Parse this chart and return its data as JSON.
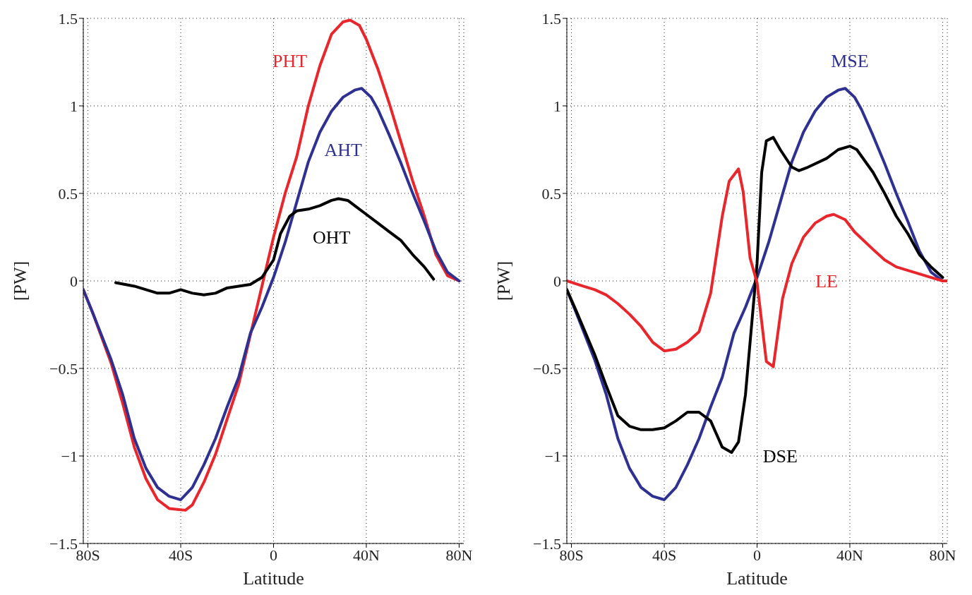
{
  "chart_data": [
    {
      "type": "line",
      "xlabel": "Latitude",
      "ylabel": "[PW]",
      "xlim": [
        -82,
        82
      ],
      "ylim": [
        -1.5,
        1.5
      ],
      "xticks": [
        {
          "value": -80,
          "label": "80S"
        },
        {
          "value": -40,
          "label": "40S"
        },
        0,
        {
          "value": 40,
          "label": "40N"
        },
        {
          "value": 80,
          "label": "80N"
        }
      ],
      "yticks": [
        -1.5,
        -1,
        -0.5,
        0,
        0.5,
        1,
        1.5
      ],
      "grid": true,
      "marker": "none",
      "line_style": "solid",
      "series": [
        {
          "color": "#e8262b",
          "x": [
            -82,
            -78,
            -70,
            -65,
            -60,
            -55,
            -50,
            -45,
            -38,
            -35,
            -30,
            -25,
            -20,
            -15,
            -10,
            -5,
            0,
            5,
            10,
            15,
            20,
            25,
            30,
            33,
            37,
            40,
            45,
            50,
            55,
            60,
            65,
            70,
            75,
            80
          ],
          "values": [
            -0.05,
            -0.18,
            -0.47,
            -0.7,
            -0.95,
            -1.13,
            -1.25,
            -1.3,
            -1.31,
            -1.28,
            -1.15,
            -0.99,
            -0.79,
            -0.59,
            -0.31,
            -0.03,
            0.25,
            0.5,
            0.71,
            1.0,
            1.23,
            1.41,
            1.48,
            1.49,
            1.46,
            1.38,
            1.21,
            1.01,
            0.79,
            0.57,
            0.37,
            0.15,
            0.03,
            0.0
          ]
        },
        {
          "color": "#2e3192",
          "x": [
            -82,
            -78,
            -70,
            -65,
            -60,
            -55,
            -50,
            -45,
            -40,
            -35,
            -30,
            -25,
            -20,
            -15,
            -10,
            -5,
            0,
            5,
            10,
            15,
            20,
            25,
            30,
            35,
            38,
            42,
            45,
            50,
            55,
            60,
            65,
            70,
            75,
            80
          ],
          "values": [
            -0.05,
            -0.18,
            -0.45,
            -0.65,
            -0.9,
            -1.07,
            -1.18,
            -1.23,
            -1.25,
            -1.18,
            -1.05,
            -0.9,
            -0.72,
            -0.55,
            -0.3,
            -0.15,
            0.02,
            0.22,
            0.45,
            0.68,
            0.85,
            0.97,
            1.05,
            1.09,
            1.1,
            1.05,
            0.98,
            0.83,
            0.67,
            0.5,
            0.34,
            0.17,
            0.05,
            0.0
          ]
        },
        {
          "color": "#000000",
          "x": [
            -68,
            -60,
            -55,
            -50,
            -45,
            -40,
            -35,
            -30,
            -25,
            -20,
            -15,
            -10,
            -5,
            0,
            3,
            7,
            10,
            15,
            20,
            25,
            28,
            32,
            35,
            40,
            45,
            50,
            55,
            60,
            65,
            69
          ],
          "values": [
            -0.01,
            -0.03,
            -0.05,
            -0.07,
            -0.07,
            -0.05,
            -0.07,
            -0.08,
            -0.07,
            -0.04,
            -0.03,
            -0.02,
            0.02,
            0.12,
            0.27,
            0.37,
            0.4,
            0.41,
            0.43,
            0.46,
            0.47,
            0.46,
            0.43,
            0.38,
            0.33,
            0.28,
            0.23,
            0.15,
            0.08,
            0.01
          ]
        }
      ],
      "annotations": [
        "PHT",
        "AHT",
        "OHT"
      ]
    },
    {
      "type": "line",
      "xlabel": "Latitude",
      "ylabel": "[PW]",
      "xlim": [
        -82,
        82
      ],
      "ylim": [
        -1.5,
        1.5
      ],
      "xticks": [
        {
          "value": -80,
          "label": "80S"
        },
        {
          "value": -40,
          "label": "40S"
        },
        0,
        {
          "value": 40,
          "label": "40N"
        },
        {
          "value": 80,
          "label": "80N"
        }
      ],
      "yticks": [
        -1.5,
        -1,
        -0.5,
        0,
        0.5,
        1,
        1.5
      ],
      "grid": true,
      "marker": "none",
      "line_style": "solid",
      "series": [
        {
          "color": "#2e3192",
          "x": [
            -82,
            -78,
            -70,
            -65,
            -60,
            -55,
            -50,
            -45,
            -40,
            -35,
            -30,
            -25,
            -20,
            -15,
            -10,
            -5,
            0,
            5,
            10,
            15,
            20,
            25,
            30,
            35,
            38,
            42,
            45,
            50,
            55,
            60,
            65,
            70,
            75,
            80
          ],
          "values": [
            -0.05,
            -0.18,
            -0.45,
            -0.65,
            -0.9,
            -1.07,
            -1.18,
            -1.23,
            -1.25,
            -1.18,
            -1.05,
            -0.9,
            -0.72,
            -0.55,
            -0.3,
            -0.15,
            0.02,
            0.22,
            0.45,
            0.68,
            0.85,
            0.97,
            1.05,
            1.09,
            1.1,
            1.05,
            0.98,
            0.83,
            0.67,
            0.5,
            0.34,
            0.17,
            0.05,
            0.0
          ]
        },
        {
          "color": "#000000",
          "x": [
            -82,
            -78,
            -70,
            -65,
            -60,
            -55,
            -50,
            -45,
            -40,
            -35,
            -30,
            -25,
            -20,
            -15,
            -11,
            -8,
            -5,
            -2,
            0,
            2,
            4,
            7,
            10,
            15,
            18,
            22,
            30,
            35,
            40,
            43,
            50,
            55,
            60,
            65,
            70,
            75,
            80
          ],
          "values": [
            -0.05,
            -0.17,
            -0.42,
            -0.6,
            -0.77,
            -0.83,
            -0.85,
            -0.85,
            -0.84,
            -0.8,
            -0.75,
            -0.75,
            -0.8,
            -0.95,
            -0.98,
            -0.92,
            -0.65,
            -0.2,
            0.1,
            0.62,
            0.8,
            0.82,
            0.75,
            0.65,
            0.63,
            0.65,
            0.7,
            0.75,
            0.77,
            0.75,
            0.62,
            0.5,
            0.37,
            0.27,
            0.15,
            0.08,
            0.02
          ]
        },
        {
          "color": "#e8262b",
          "x": [
            -82,
            -75,
            -70,
            -65,
            -60,
            -55,
            -50,
            -45,
            -40,
            -35,
            -30,
            -25,
            -20,
            -15,
            -12,
            -8,
            -6,
            -3,
            0,
            4,
            7,
            11,
            15,
            20,
            25,
            30,
            33,
            38,
            42,
            50,
            55,
            60,
            65,
            70,
            75,
            80,
            82
          ],
          "values": [
            0.0,
            -0.03,
            -0.05,
            -0.08,
            -0.13,
            -0.19,
            -0.26,
            -0.35,
            -0.4,
            -0.39,
            -0.35,
            -0.29,
            -0.07,
            0.37,
            0.57,
            0.64,
            0.51,
            0.13,
            -0.01,
            -0.46,
            -0.49,
            -0.1,
            0.1,
            0.25,
            0.33,
            0.37,
            0.38,
            0.35,
            0.28,
            0.18,
            0.12,
            0.08,
            0.06,
            0.04,
            0.02,
            0.0,
            0.0
          ]
        }
      ],
      "annotations": [
        "MSE",
        "DSE",
        "LE"
      ]
    }
  ]
}
